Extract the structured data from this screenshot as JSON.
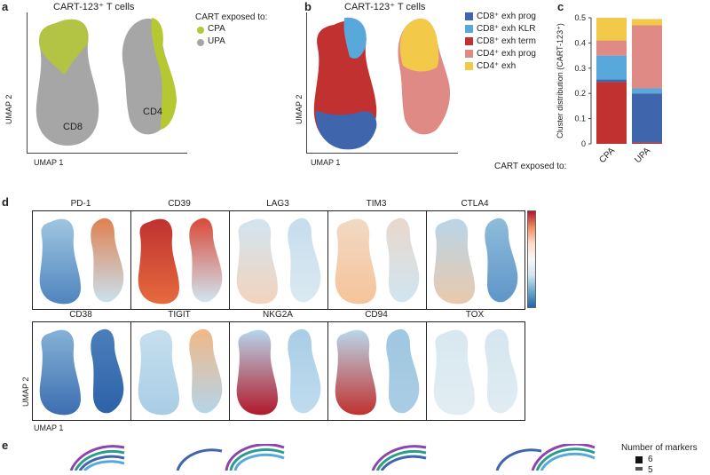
{
  "panels": {
    "a": {
      "letter": "a",
      "title": "CART-123⁺ T cells",
      "legend_title": "CART exposed to:",
      "legend": [
        {
          "label": "CPA",
          "color": "#b5c832"
        },
        {
          "label": "UPA",
          "color": "#a6a6a6"
        }
      ],
      "cluster_labels": [
        "CD8",
        "CD4"
      ],
      "xlabel": "UMAP 1",
      "ylabel": "UMAP 2"
    },
    "b": {
      "letter": "b",
      "title": "CART-123⁺ T cells",
      "legend": [
        {
          "label": "CD8⁺ exh prog",
          "color": "#3f66ad"
        },
        {
          "label": "CD8⁺ exh KLR",
          "color": "#58a8dc"
        },
        {
          "label": "CD8⁺ exh term",
          "color": "#c0312f"
        },
        {
          "label": "CD4⁺ exh prog",
          "color": "#e08a86"
        },
        {
          "label": "CD4⁺ exh",
          "color": "#f3c94a"
        }
      ],
      "xlabel": "UMAP 1",
      "ylabel": "UMAP 2"
    },
    "c": {
      "letter": "c"
    },
    "d": {
      "letter": "d",
      "row1": [
        "PD-1",
        "CD39",
        "LAG3",
        "TIM3",
        "CTLA4"
      ],
      "row2": [
        "CD38",
        "TIGIT",
        "NKG2A",
        "CD94",
        "TOX"
      ],
      "xlabel": "UMAP 1",
      "ylabel": "UMAP 2"
    },
    "e": {
      "letter": "e",
      "legend_title": "Number of markers",
      "legend_values": [
        "6",
        "5"
      ]
    }
  },
  "chart_data": {
    "type": "bar",
    "stacked": true,
    "categories": [
      "CPA",
      "UPA"
    ],
    "ylabel": "Cluster distribution (CART-123⁺)",
    "xlabel": "CART exposed to:",
    "ylim": [
      0,
      0.5
    ],
    "yticks": [
      "0",
      "0.1",
      "0.2",
      "0.3",
      "0.4",
      "0.5"
    ],
    "series": [
      {
        "name": "CD8⁺ exh term",
        "color": "#c0312f",
        "values": [
          0.245,
          0.005
        ]
      },
      {
        "name": "CD8⁺ exh prog",
        "color": "#3f66ad",
        "values": [
          0.01,
          0.195
        ]
      },
      {
        "name": "CD8⁺ exh KLR",
        "color": "#58a8dc",
        "values": [
          0.095,
          0.02
        ]
      },
      {
        "name": "CD4⁺ exh prog",
        "color": "#e08a86",
        "values": [
          0.06,
          0.25
        ]
      },
      {
        "name": "CD4⁺ exh",
        "color": "#f3c94a",
        "values": [
          0.09,
          0.025
        ]
      }
    ]
  }
}
